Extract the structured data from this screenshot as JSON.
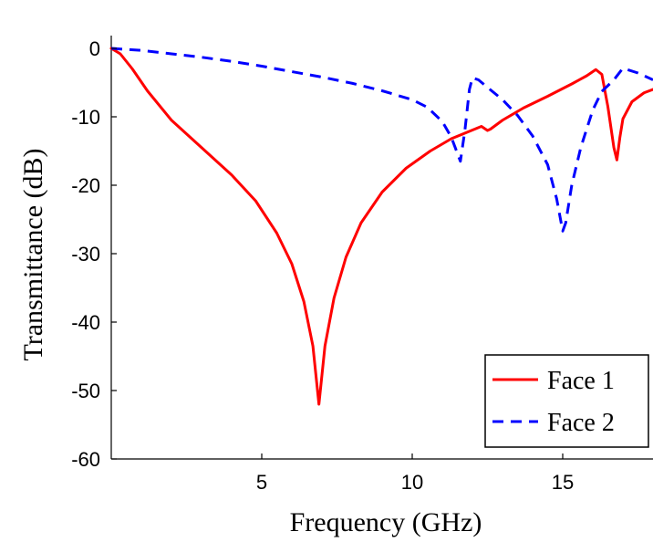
{
  "chart_data": {
    "type": "line",
    "title": "",
    "xlabel": "Frequency (GHz)",
    "ylabel": "Transmittance (dB)",
    "xlim": [
      0,
      18
    ],
    "ylim": [
      -60,
      0
    ],
    "xticks": [
      5,
      10,
      15
    ],
    "xtick_labels": [
      "5",
      "10",
      "15"
    ],
    "yticks": [
      0,
      -10,
      -20,
      -30,
      -40,
      -50,
      -60
    ],
    "ytick_labels": [
      "0",
      "-10",
      "-20",
      "-30",
      "-40",
      "-50",
      "-60"
    ],
    "grid": false,
    "legend_position": "bottom-right",
    "series": [
      {
        "name": "Face 1",
        "color": "#ff0000",
        "line_style": "solid",
        "x": [
          0,
          0.3,
          0.7,
          1.2,
          2,
          3,
          4,
          4.8,
          5.5,
          6,
          6.4,
          6.7,
          6.9,
          7.1,
          7.4,
          7.8,
          8.3,
          9,
          9.8,
          10.6,
          11.3,
          11.8,
          12.3,
          12.5,
          12.6,
          13,
          13.7,
          14.5,
          15.3,
          15.8,
          16.1,
          16.3,
          16.5,
          16.7,
          16.8,
          16.9,
          17,
          17.3,
          17.7,
          18
        ],
        "y": [
          0,
          -0.8,
          -3,
          -6.2,
          -10.5,
          -14.5,
          -18.5,
          -22.3,
          -27,
          -31.5,
          -37,
          -43.5,
          -52,
          -43.5,
          -36.5,
          -30.5,
          -25.5,
          -21,
          -17.5,
          -15,
          -13.2,
          -12.3,
          -11.4,
          -12,
          -11.8,
          -10.5,
          -8.7,
          -7,
          -5.2,
          -4,
          -3.1,
          -3.8,
          -8.5,
          -14.5,
          -16.3,
          -13,
          -10.3,
          -7.8,
          -6.5,
          -6
        ]
      },
      {
        "name": "Face 2",
        "color": "#0000ff",
        "line_style": "dashed",
        "x": [
          0,
          1,
          2,
          3,
          4,
          5,
          6,
          7,
          8,
          9,
          10,
          10.5,
          11,
          11.3,
          11.6,
          11.75,
          11.9,
          12,
          12.2,
          12.5,
          13,
          13.5,
          14,
          14.5,
          14.8,
          15.0,
          15.1,
          15.3,
          15.6,
          16,
          16.3,
          16.7,
          17,
          17.5,
          18
        ],
        "y": [
          0,
          -0.3,
          -0.8,
          -1.3,
          -1.9,
          -2.6,
          -3.4,
          -4.2,
          -5.1,
          -6.2,
          -7.5,
          -8.6,
          -10.7,
          -13,
          -16.5,
          -12,
          -6,
          -4.3,
          -4.6,
          -5.7,
          -7.5,
          -9.8,
          -12.8,
          -17,
          -22,
          -26.7,
          -25.5,
          -20,
          -14.5,
          -9,
          -6.3,
          -4.6,
          -2.9,
          -3.6,
          -4.6
        ]
      }
    ]
  }
}
